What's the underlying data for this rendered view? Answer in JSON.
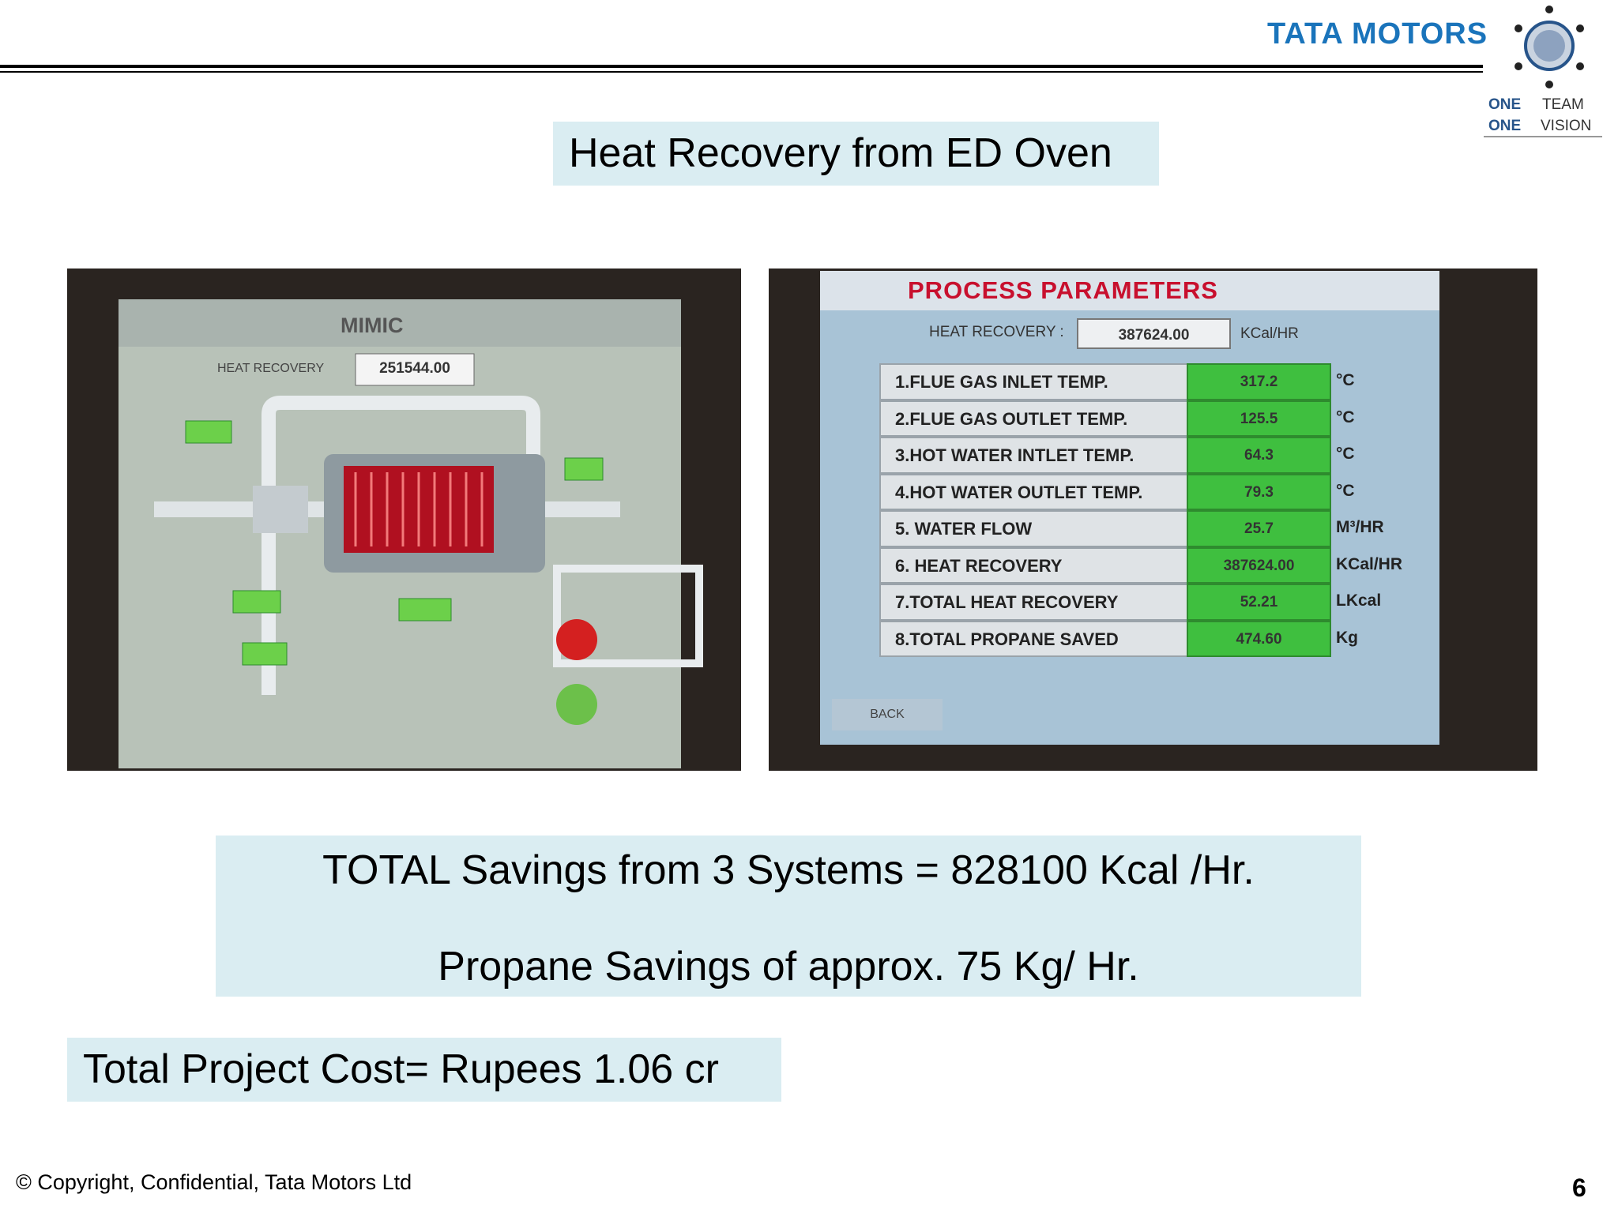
{
  "header": {
    "logo": "TATA MOTORS",
    "tagline": [
      "ONE",
      "TEAM",
      "ONE",
      "VISION"
    ]
  },
  "title": "Heat Recovery from ED Oven",
  "left_screen": {
    "title": "MIMIC",
    "heat_recovery_label": "HEAT RECOVERY",
    "heat_recovery_value": "251544.00"
  },
  "right_screen": {
    "title": "PROCESS PARAMETERS",
    "heat_recovery_label": "HEAT RECOVERY :",
    "heat_recovery_value": "387624.00",
    "heat_recovery_unit": "KCal/HR",
    "rows": [
      [
        "1.FLUE GAS INLET TEMP.",
        "317.2",
        "°C"
      ],
      [
        "2.FLUE GAS OUTLET TEMP.",
        "125.5",
        "°C"
      ],
      [
        "3.HOT WATER INTLET TEMP.",
        "64.3",
        "°C"
      ],
      [
        "4.HOT WATER OUTLET TEMP.",
        "79.3",
        "°C"
      ],
      [
        "5. WATER FLOW",
        "25.7",
        "M³/HR"
      ],
      [
        "6. HEAT RECOVERY",
        "387624.00",
        "KCal/HR"
      ],
      [
        "7.TOTAL HEAT RECOVERY",
        "52.21",
        "LKcal"
      ],
      [
        "8.TOTAL PROPANE SAVED",
        "474.60",
        "Kg"
      ]
    ],
    "back": "BACK"
  },
  "savings": [
    "TOTAL Savings from 3 Systems = 828100 Kcal /Hr.",
    "Propane Savings of approx. 75 Kg/ Hr."
  ],
  "cost": "Total Project Cost= Rupees 1.06 cr",
  "footer": {
    "copyright": "© Copyright, Confidential, Tata Motors Ltd",
    "page": "6"
  }
}
